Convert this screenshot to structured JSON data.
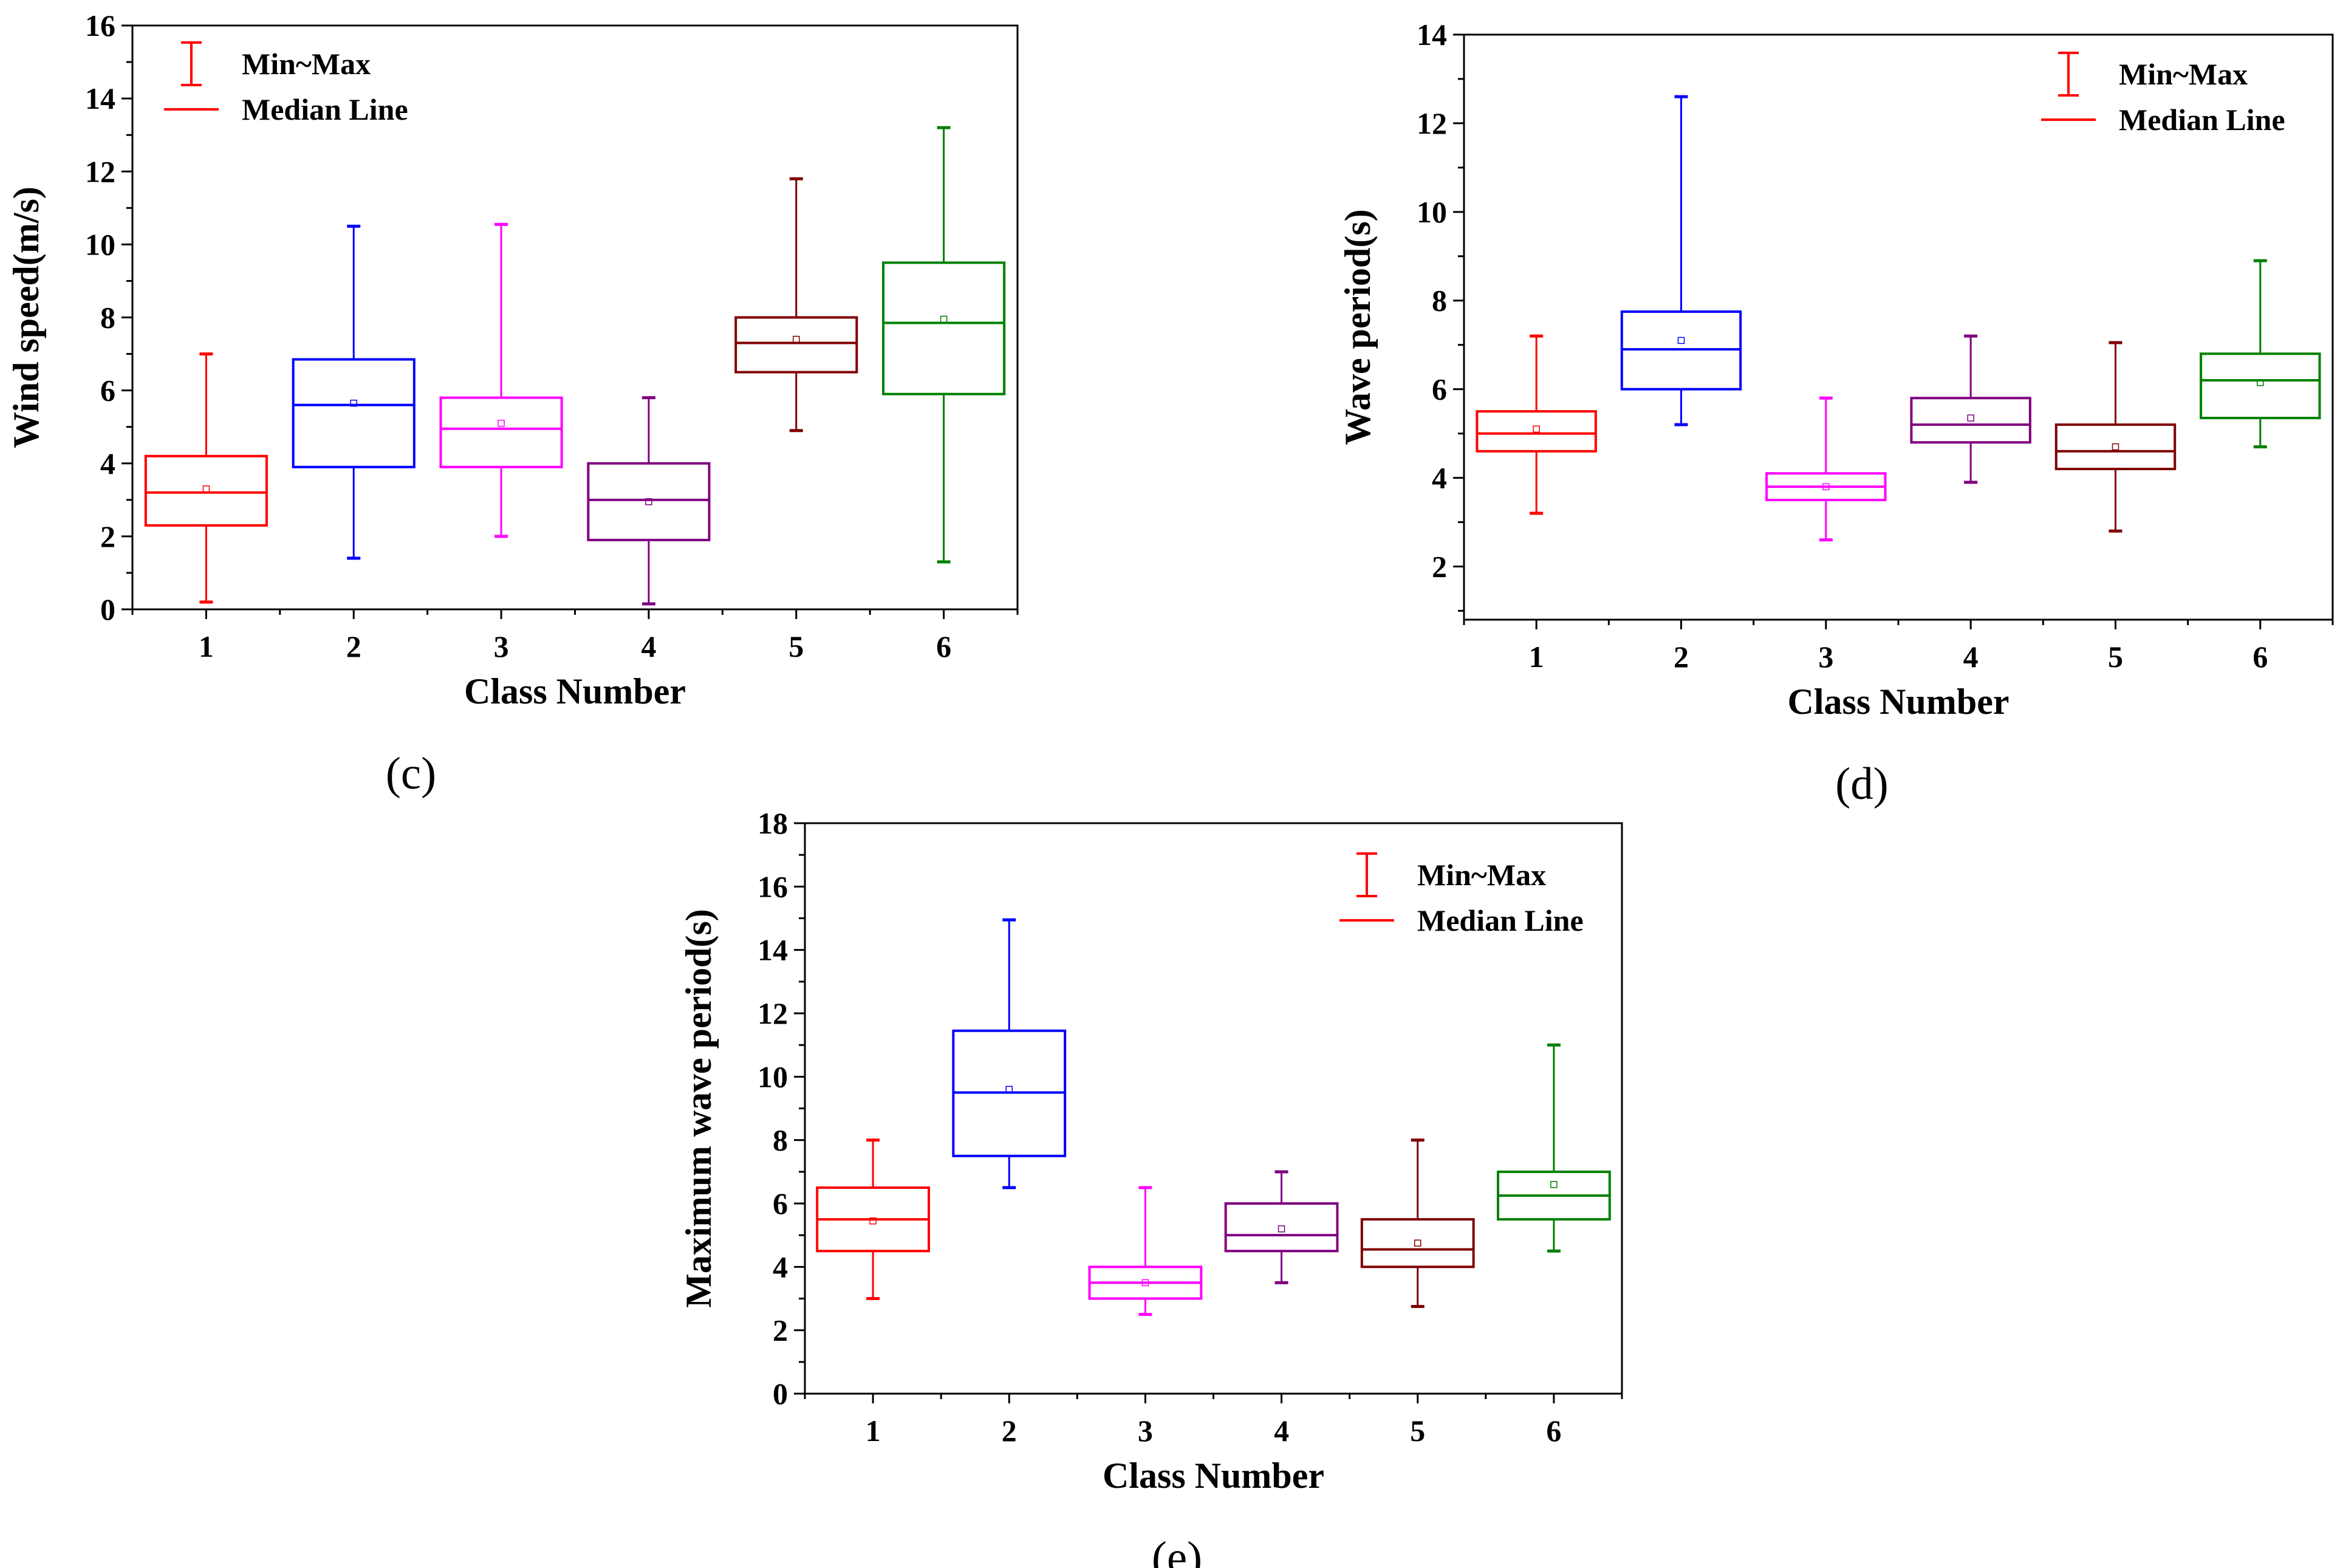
{
  "legend": {
    "minmax_label": "Min~Max",
    "median_label": "Median Line"
  },
  "colors": {
    "series": [
      "#ff0000",
      "#0000ff",
      "#ff00ff",
      "#800080",
      "#800000",
      "#008000"
    ]
  },
  "chart_data": [
    {
      "id": "c",
      "type": "box",
      "panel_label": "(c)",
      "xlabel": "Class Number",
      "ylabel": "Wind speed(m/s)",
      "categories": [
        "1",
        "2",
        "3",
        "4",
        "5",
        "6"
      ],
      "ylim": [
        0,
        16
      ],
      "yticks": [
        0,
        2,
        4,
        6,
        8,
        10,
        12,
        14,
        16
      ],
      "legend_position": "top-left",
      "boxes": [
        {
          "min": 0.2,
          "q1": 2.3,
          "median": 3.2,
          "q3": 4.2,
          "max": 7.0,
          "mean": 3.3
        },
        {
          "min": 1.4,
          "q1": 3.9,
          "median": 5.6,
          "q3": 6.85,
          "max": 10.5,
          "mean": 5.65
        },
        {
          "min": 2.0,
          "q1": 3.9,
          "median": 4.95,
          "q3": 5.8,
          "max": 10.55,
          "mean": 5.1
        },
        {
          "min": 0.15,
          "q1": 1.9,
          "median": 3.0,
          "q3": 4.0,
          "max": 5.8,
          "mean": 2.95
        },
        {
          "min": 4.9,
          "q1": 6.5,
          "median": 7.3,
          "q3": 8.0,
          "max": 11.8,
          "mean": 7.4
        },
        {
          "min": 1.3,
          "q1": 5.9,
          "median": 7.85,
          "q3": 9.5,
          "max": 13.2,
          "mean": 7.95
        }
      ]
    },
    {
      "id": "d",
      "type": "box",
      "panel_label": "(d)",
      "xlabel": "Class Number",
      "ylabel": "Wave  period(s)",
      "categories": [
        "1",
        "2",
        "3",
        "4",
        "5",
        "6"
      ],
      "ylim": [
        0.8,
        14
      ],
      "yticks": [
        2,
        4,
        6,
        8,
        10,
        12,
        14
      ],
      "legend_position": "top-right",
      "boxes": [
        {
          "min": 3.2,
          "q1": 4.6,
          "median": 5.0,
          "q3": 5.5,
          "max": 7.2,
          "mean": 5.1
        },
        {
          "min": 5.2,
          "q1": 6.0,
          "median": 6.9,
          "q3": 7.75,
          "max": 12.6,
          "mean": 7.1
        },
        {
          "min": 2.6,
          "q1": 3.5,
          "median": 3.8,
          "q3": 4.1,
          "max": 5.8,
          "mean": 3.8
        },
        {
          "min": 3.9,
          "q1": 4.8,
          "median": 5.2,
          "q3": 5.8,
          "max": 7.2,
          "mean": 5.35
        },
        {
          "min": 2.8,
          "q1": 4.2,
          "median": 4.6,
          "q3": 5.2,
          "max": 7.05,
          "mean": 4.7
        },
        {
          "min": 4.7,
          "q1": 5.35,
          "median": 6.2,
          "q3": 6.8,
          "max": 8.9,
          "mean": 6.15
        }
      ]
    },
    {
      "id": "e",
      "type": "box",
      "panel_label": "(e)",
      "xlabel": "Class Number",
      "ylabel": "Maximum wave  period(s)",
      "categories": [
        "1",
        "2",
        "3",
        "4",
        "5",
        "6"
      ],
      "ylim": [
        0,
        18
      ],
      "yticks": [
        0,
        2,
        4,
        6,
        8,
        10,
        12,
        14,
        16,
        18
      ],
      "legend_position": "top-right",
      "boxes": [
        {
          "min": 3.0,
          "q1": 4.5,
          "median": 5.5,
          "q3": 6.5,
          "max": 8.0,
          "mean": 5.45
        },
        {
          "min": 6.5,
          "q1": 7.5,
          "median": 9.5,
          "q3": 11.45,
          "max": 14.95,
          "mean": 9.6
        },
        {
          "min": 2.5,
          "q1": 3.0,
          "median": 3.5,
          "q3": 4.0,
          "max": 6.5,
          "mean": 3.5
        },
        {
          "min": 3.5,
          "q1": 4.5,
          "median": 5.0,
          "q3": 6.0,
          "max": 7.0,
          "mean": 5.2
        },
        {
          "min": 2.75,
          "q1": 4.0,
          "median": 4.55,
          "q3": 5.5,
          "max": 8.0,
          "mean": 4.75
        },
        {
          "min": 4.5,
          "q1": 5.5,
          "median": 6.25,
          "q3": 7.0,
          "max": 11.0,
          "mean": 6.6
        }
      ]
    }
  ]
}
